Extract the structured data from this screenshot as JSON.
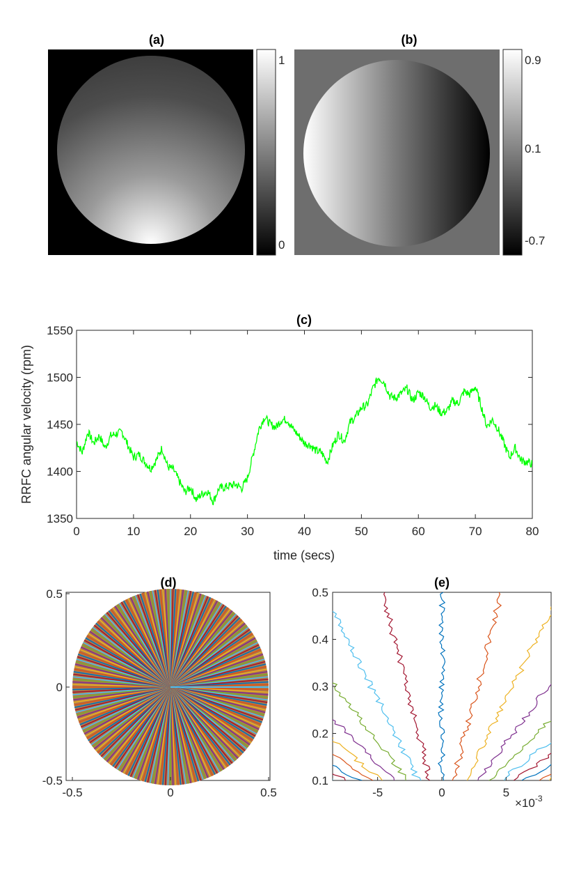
{
  "chart_data": [
    {
      "id": "a",
      "type": "heatmap",
      "title": "(a)",
      "description_values": "grayscale disc image, intensity increasing toward bottom",
      "colorbar": {
        "ticks": [
          "1",
          "0"
        ],
        "range": [
          0,
          1
        ],
        "colormap": "gray"
      }
    },
    {
      "id": "b",
      "type": "heatmap",
      "title": "(b)",
      "colorbar": {
        "ticks": [
          "0.9",
          "0.1",
          "-0.7"
        ],
        "range": [
          -0.7,
          0.9
        ],
        "colormap": "gray"
      }
    },
    {
      "id": "c",
      "type": "line",
      "title": "(c)",
      "xlabel": "time (secs)",
      "ylabel": "RRFC angular velocity (rpm)",
      "xlim": [
        0,
        80
      ],
      "ylim": [
        1350,
        1550
      ],
      "xticks": [
        "0",
        "10",
        "20",
        "30",
        "40",
        "50",
        "60",
        "70",
        "80"
      ],
      "yticks": [
        "1550",
        "1500",
        "1450",
        "1400",
        "1350"
      ],
      "line_color": "#00ff00",
      "series": [
        {
          "name": "angular velocity",
          "x": [
            0,
            1,
            2,
            3,
            4,
            5,
            6,
            7,
            8,
            9,
            10,
            11,
            12,
            13,
            14,
            15,
            16,
            17,
            18,
            19,
            20,
            21,
            22,
            23,
            24,
            25,
            26,
            27,
            28,
            29,
            30,
            31,
            32,
            33,
            34,
            35,
            36,
            37,
            38,
            39,
            40,
            41,
            42,
            43,
            44,
            45,
            46,
            47,
            48,
            49,
            50,
            51,
            52,
            53,
            54,
            55,
            56,
            57,
            58,
            59,
            60,
            61,
            62,
            63,
            64,
            65,
            66,
            67,
            68,
            69,
            70,
            71,
            72,
            73,
            74,
            75,
            76,
            77,
            78,
            79,
            80
          ],
          "y": [
            1432,
            1420,
            1442,
            1430,
            1438,
            1425,
            1438,
            1440,
            1442,
            1428,
            1415,
            1418,
            1410,
            1403,
            1412,
            1425,
            1405,
            1402,
            1390,
            1378,
            1383,
            1370,
            1376,
            1379,
            1368,
            1382,
            1383,
            1385,
            1386,
            1382,
            1393,
            1418,
            1445,
            1458,
            1450,
            1447,
            1455,
            1455,
            1445,
            1438,
            1430,
            1428,
            1422,
            1420,
            1410,
            1428,
            1440,
            1432,
            1452,
            1458,
            1468,
            1470,
            1488,
            1500,
            1495,
            1480,
            1478,
            1483,
            1488,
            1475,
            1484,
            1480,
            1468,
            1470,
            1462,
            1464,
            1475,
            1472,
            1485,
            1482,
            1490,
            1470,
            1448,
            1455,
            1445,
            1430,
            1415,
            1425,
            1412,
            1410,
            1408
          ]
        }
      ]
    },
    {
      "id": "d",
      "type": "line",
      "title": "(d)",
      "xlim": [
        -0.5,
        0.5
      ],
      "ylim": [
        -0.5,
        0.5
      ],
      "xticks": [
        "-0.5",
        "0",
        "0.5"
      ],
      "yticks": [
        "0.5",
        "0",
        "-0.5"
      ],
      "description_values": "dense set of radial trajectories filling a disc of radius 0.5",
      "series_colors": [
        "#0072bd",
        "#d95319",
        "#edb120",
        "#7e2f8e",
        "#77ac30",
        "#4dbeee",
        "#a2142f"
      ]
    },
    {
      "id": "e",
      "type": "line",
      "title": "(e)",
      "xlim": [
        -0.0085,
        0.0085
      ],
      "ylim": [
        0.1,
        0.5
      ],
      "xticks": [
        "-5",
        "0",
        "5"
      ],
      "yticks": [
        "0.5",
        "0.4",
        "0.3",
        "0.2",
        "0.1"
      ],
      "x_multiplier_base": "×10",
      "x_multiplier_exp": "-3",
      "description_values": "zoomed view of radial trajectories near the centre",
      "series_colors": [
        "#0072bd",
        "#d95319",
        "#edb120",
        "#7e2f8e",
        "#77ac30",
        "#4dbeee",
        "#a2142f"
      ]
    }
  ]
}
